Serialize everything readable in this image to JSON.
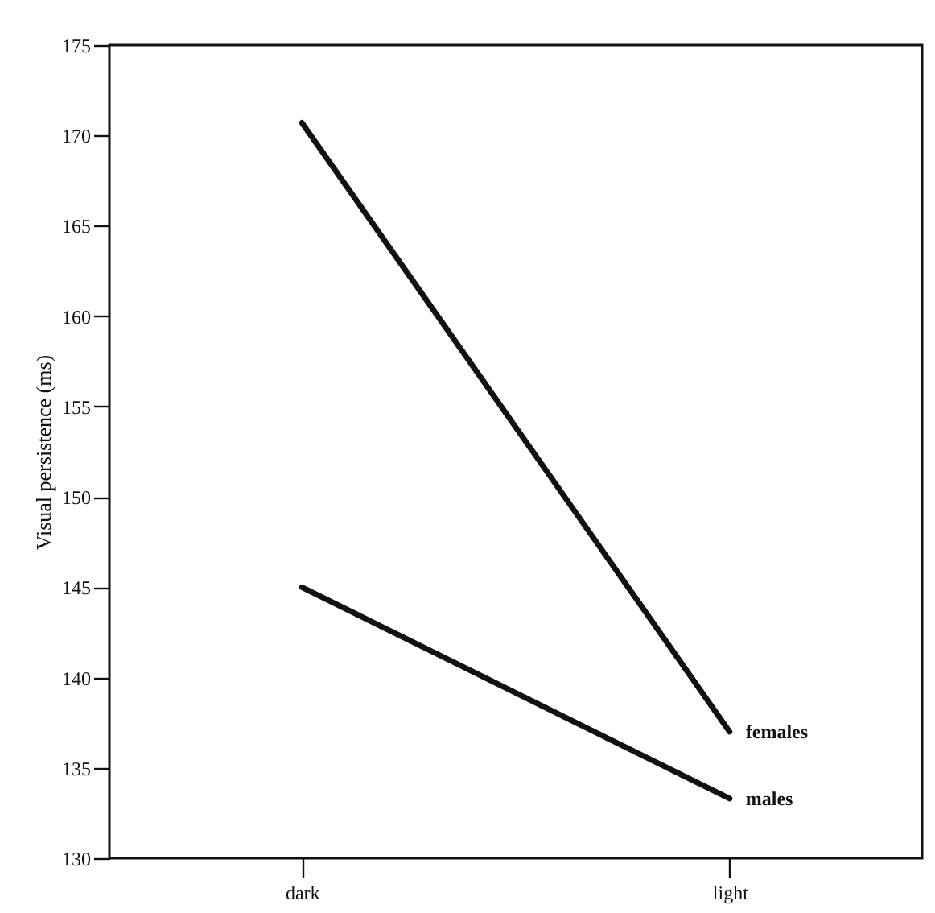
{
  "chart_data": {
    "type": "line",
    "ylabel": "Visual persistence (ms)",
    "categories": [
      "dark",
      "light"
    ],
    "series": [
      {
        "name": "females",
        "color": "#111111",
        "values": [
          170.7,
          137
        ]
      },
      {
        "name": "males",
        "color": "#111111",
        "values": [
          145,
          133.3
        ]
      }
    ],
    "ylim": [
      130,
      175
    ],
    "yticks": [
      130,
      135,
      140,
      145,
      150,
      155,
      160,
      165,
      170,
      175
    ],
    "grid": false,
    "legend": false,
    "marker": "none",
    "line_style": "solid"
  }
}
